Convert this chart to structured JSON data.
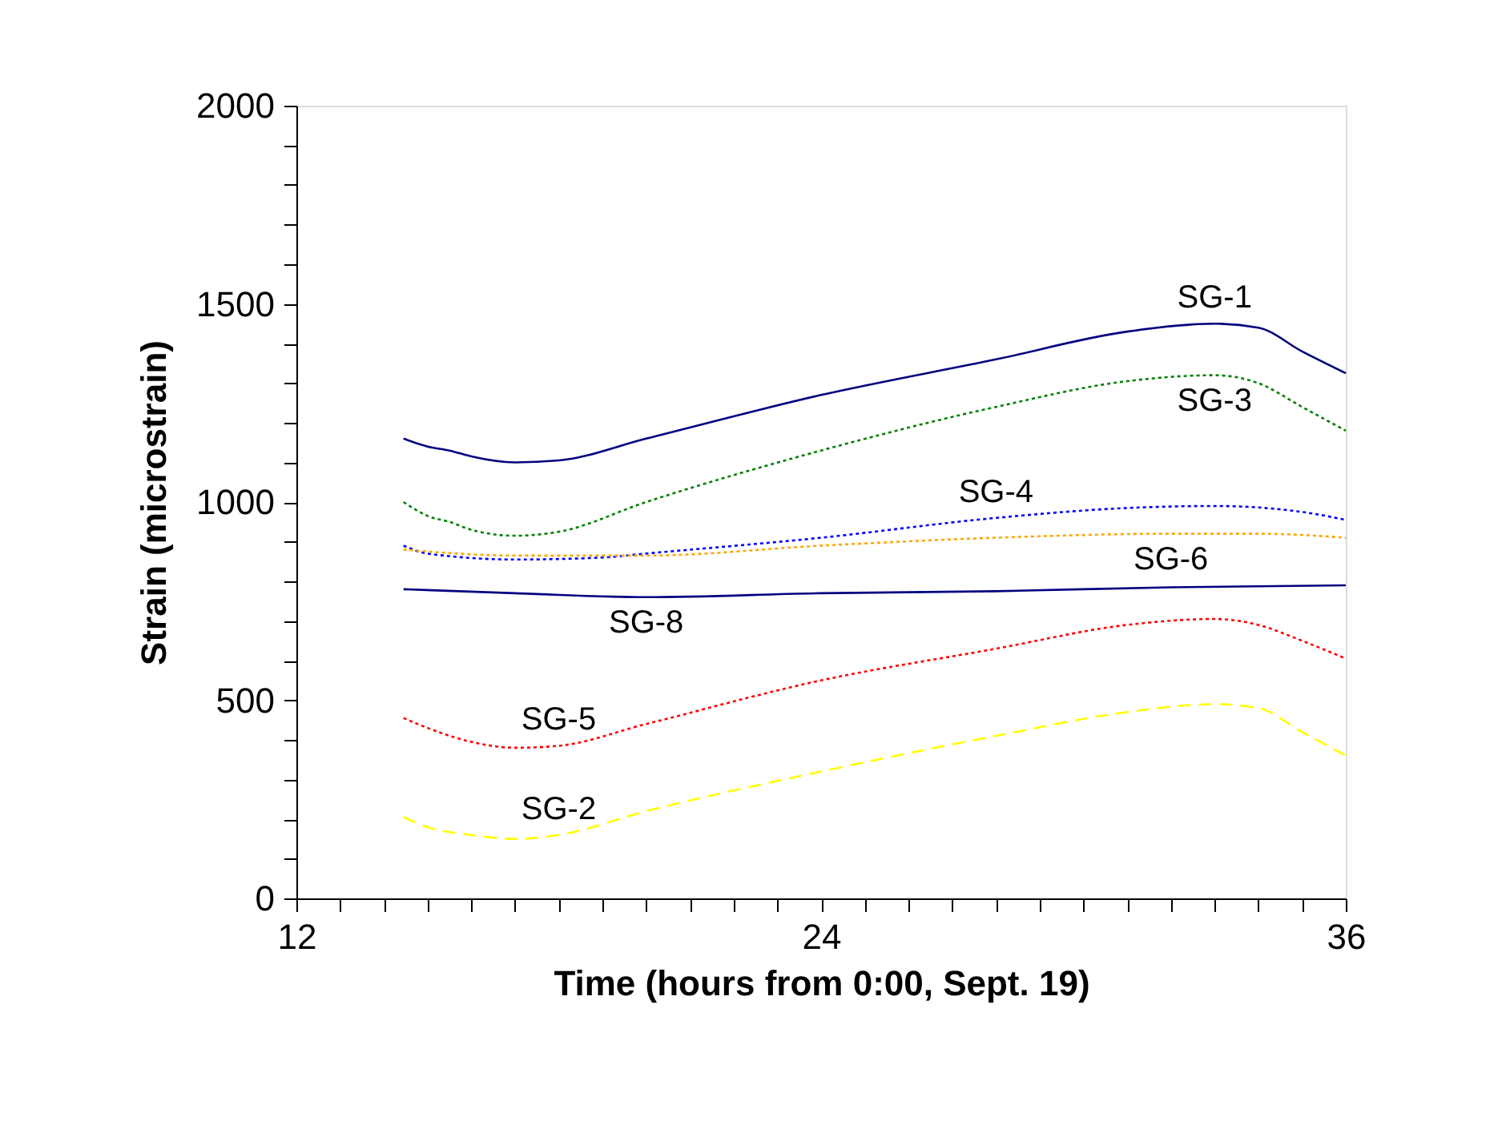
{
  "chart_data": {
    "type": "line",
    "xlabel": "Time (hours from 0:00, Sept. 19)",
    "ylabel": "Strain (microstrain)",
    "xlim": [
      12,
      36
    ],
    "ylim": [
      0,
      2000
    ],
    "xticks": [
      12,
      {
        "value": 13,
        "label": null
      },
      {
        "value": 14,
        "label": null
      },
      {
        "value": 15,
        "label": null
      },
      {
        "value": 16,
        "label": null
      },
      {
        "value": 17,
        "label": null
      },
      {
        "value": 18,
        "label": null
      },
      {
        "value": 19,
        "label": null
      },
      {
        "value": 20,
        "label": null
      },
      {
        "value": 21,
        "label": null
      },
      {
        "value": 22,
        "label": null
      },
      {
        "value": 23,
        "label": null
      },
      24,
      {
        "value": 25,
        "label": null
      },
      {
        "value": 26,
        "label": null
      },
      {
        "value": 27,
        "label": null
      },
      {
        "value": 28,
        "label": null
      },
      {
        "value": 29,
        "label": null
      },
      {
        "value": 30,
        "label": null
      },
      {
        "value": 31,
        "label": null
      },
      {
        "value": 32,
        "label": null
      },
      {
        "value": 33,
        "label": null
      },
      {
        "value": 34,
        "label": null
      },
      {
        "value": 35,
        "label": null
      },
      36
    ],
    "yticks": [
      0,
      {
        "value": 100,
        "label": null
      },
      {
        "value": 200,
        "label": null
      },
      {
        "value": 300,
        "label": null
      },
      {
        "value": 400,
        "label": null
      },
      500,
      {
        "value": 600,
        "label": null
      },
      {
        "value": 700,
        "label": null
      },
      {
        "value": 800,
        "label": null
      },
      {
        "value": 900,
        "label": null
      },
      1000,
      {
        "value": 1100,
        "label": null
      },
      {
        "value": 1200,
        "label": null
      },
      {
        "value": 1300,
        "label": null
      },
      {
        "value": 1400,
        "label": null
      },
      1500,
      {
        "value": 1600,
        "label": null
      },
      {
        "value": 1700,
        "label": null
      },
      {
        "value": 1800,
        "label": null
      },
      {
        "value": 1900,
        "label": null
      },
      2000
    ],
    "grid": false,
    "marker": "none",
    "series": [
      {
        "color": "#000080",
        "line_style": "solid",
        "x": [
          14.45,
          15,
          15.5,
          16,
          17,
          18,
          20,
          24,
          28,
          31,
          33,
          34,
          35,
          36
        ],
        "values": [
          1160,
          1140,
          1130,
          1115,
          1100,
          1105,
          1160,
          1270,
          1360,
          1430,
          1450,
          1440,
          1380,
          1325
        ]
      },
      {
        "color": "#008000",
        "line_style": "dotted",
        "x": [
          14.45,
          15,
          15.5,
          16,
          17,
          18,
          20,
          24,
          28,
          31,
          33,
          34,
          35,
          36
        ],
        "values": [
          1000,
          965,
          950,
          930,
          915,
          925,
          1000,
          1130,
          1240,
          1305,
          1320,
          1300,
          1240,
          1180
        ]
      },
      {
        "color": "#0000ff",
        "line_style": "dotted",
        "x": [
          14.45,
          15,
          17,
          19,
          20,
          24,
          28,
          31,
          33,
          35,
          36
        ],
        "values": [
          890,
          870,
          855,
          860,
          870,
          910,
          960,
          985,
          990,
          975,
          955
        ]
      },
      {
        "color": "#ffa500",
        "line_style": "dotted",
        "x": [
          14.45,
          17,
          20,
          24,
          28,
          32,
          34,
          36
        ],
        "values": [
          880,
          865,
          865,
          890,
          910,
          920,
          920,
          910
        ]
      },
      {
        "color": "#000080",
        "line_style": "solid",
        "x": [
          14.45,
          17,
          20,
          24,
          28,
          32,
          36
        ],
        "values": [
          780,
          770,
          760,
          770,
          775,
          785,
          790
        ]
      },
      {
        "color": "#ff0000",
        "line_style": "dotted",
        "x": [
          14.45,
          15,
          16,
          17,
          18,
          20,
          24,
          28,
          31,
          33,
          34,
          35,
          36
        ],
        "values": [
          455,
          430,
          395,
          380,
          385,
          440,
          550,
          630,
          690,
          705,
          690,
          650,
          605
        ]
      },
      {
        "color": "#ffff00",
        "line_style": "dashed",
        "x": [
          14.45,
          15,
          16,
          17,
          18,
          20,
          24,
          28,
          31,
          33,
          34,
          35,
          36
        ],
        "values": [
          205,
          180,
          160,
          150,
          160,
          220,
          320,
          410,
          470,
          490,
          480,
          420,
          360
        ]
      }
    ],
    "annotations": [
      {
        "text": "SG-1",
        "x": 33,
        "y": 1450
      },
      {
        "text": "SG-3",
        "x": 33,
        "y": 1320
      },
      {
        "text": "SG-4",
        "x": 28,
        "y": 960
      },
      {
        "text": "SG-6",
        "x": 32,
        "y": 920
      },
      {
        "text": "SG-8",
        "x": 20,
        "y": 760
      },
      {
        "text": "SG-5",
        "x": 18,
        "y": 385
      },
      {
        "text": "SG-2",
        "x": 18,
        "y": 160
      }
    ]
  }
}
